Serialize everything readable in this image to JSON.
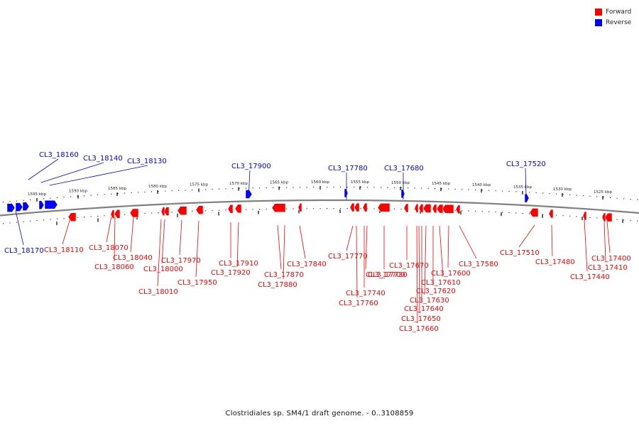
{
  "legend": [
    {
      "label": "Forward",
      "color": "#ff0000"
    },
    {
      "label": "Reverse",
      "color": "#0000ff"
    }
  ],
  "caption": "Clostridiales sp. SM4/1 draft genome. - 0..3108859",
  "scale_ticks": [
    "1595 kbp",
    "1590 kbp",
    "1585 kbp",
    "1580 kbp",
    "1575 kbp",
    "1570 kbp",
    "1565 kbp",
    "1560 kbp",
    "1555 kbp",
    "1550 kbp",
    "1545 kbp",
    "1540 kbp",
    "1535 kbp",
    "1530 kbp",
    "1525 kbp"
  ],
  "colors": {
    "forward": "#ff0000",
    "reverse": "#0000ff",
    "backbone": "#808080"
  },
  "reverse_labels": [
    "CL3_18160",
    "CL3_18140",
    "CL3_18130",
    "CL3_17900",
    "CL3_17780",
    "CL3_17680",
    "CL3_17520",
    "CL3_18170"
  ],
  "forward_labels": [
    "CL3_18110",
    "CL3_18070",
    "CL3_18060",
    "CL3_18040",
    "CL3_18010",
    "CL3_18000",
    "CL3_17970",
    "CL3_17950",
    "CL3_17910",
    "CL3_17920",
    "CL3_17870",
    "CL3_17880",
    "CL3_17840",
    "CL3_17770",
    "CL3_17730",
    "CL3_17740",
    "CL3_17760",
    "CL3_17700",
    "CL3_17670",
    "CL3_17600",
    "CL3_17610",
    "CL3_17620",
    "CL3_17630",
    "CL3_17640",
    "CL3_17650",
    "CL3_17660",
    "CL3_17580",
    "CL3_17510",
    "CL3_17480",
    "CL3_17400",
    "CL3_17410",
    "CL3_17440"
  ]
}
